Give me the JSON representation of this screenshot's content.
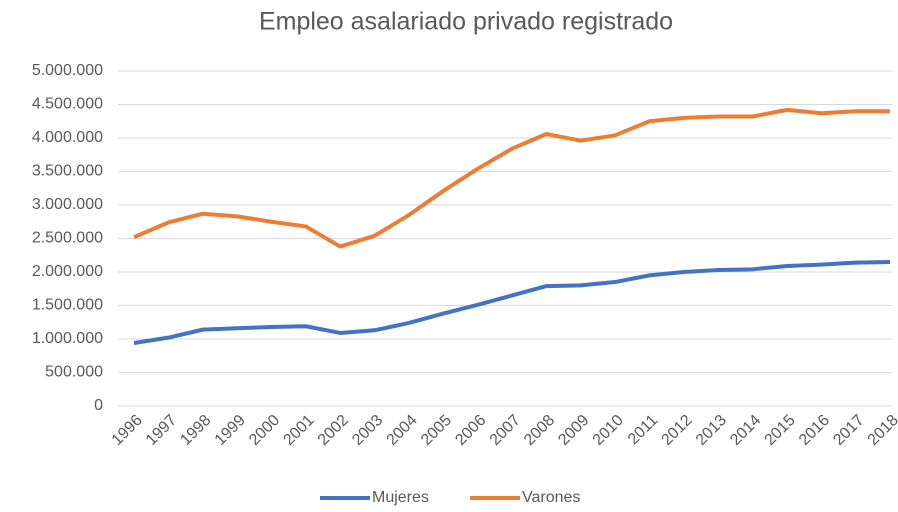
{
  "chart_data": {
    "type": "line",
    "title": "Empleo asalariado privado registrado",
    "categories": [
      "1996",
      "1997",
      "1998",
      "1999",
      "2000",
      "2001",
      "2002",
      "2003",
      "2004",
      "2005",
      "2006",
      "2007",
      "2008",
      "2009",
      "2010",
      "2011",
      "2012",
      "2013",
      "2014",
      "2015",
      "2016",
      "2017",
      "2018"
    ],
    "series": [
      {
        "name": "Mujeres",
        "color": "#4472c4",
        "values": [
          940000,
          1020000,
          1140000,
          1160000,
          1180000,
          1190000,
          1090000,
          1130000,
          1240000,
          1380000,
          1510000,
          1650000,
          1790000,
          1800000,
          1850000,
          1950000,
          2000000,
          2030000,
          2040000,
          2090000,
          2110000,
          2140000,
          2150000
        ]
      },
      {
        "name": "Varones",
        "color": "#ed7d31",
        "values": [
          2520000,
          2740000,
          2870000,
          2830000,
          2750000,
          2680000,
          2380000,
          2540000,
          2850000,
          3210000,
          3540000,
          3840000,
          4060000,
          3960000,
          4040000,
          4250000,
          4300000,
          4320000,
          4320000,
          4420000,
          4370000,
          4400000,
          4400000
        ]
      }
    ],
    "ylim": [
      0,
      5000000
    ],
    "yticks": [
      0,
      {
        "value": 500000,
        "label": "500.000"
      },
      {
        "value": 1000000,
        "label": "1.000.000"
      },
      {
        "value": 1500000,
        "label": "1.500.000"
      },
      {
        "value": 2000000,
        "label": "2.000.000"
      },
      {
        "value": 2500000,
        "label": "2.500.000"
      },
      {
        "value": 3000000,
        "label": "3.000.000"
      },
      {
        "value": 3500000,
        "label": "3.500.000"
      },
      {
        "value": 4000000,
        "label": "4.000.000"
      },
      {
        "value": 4500000,
        "label": "4.500.000"
      },
      {
        "value": 5000000,
        "label": "5.000.000"
      }
    ],
    "grid": true,
    "legend": "bottom"
  }
}
